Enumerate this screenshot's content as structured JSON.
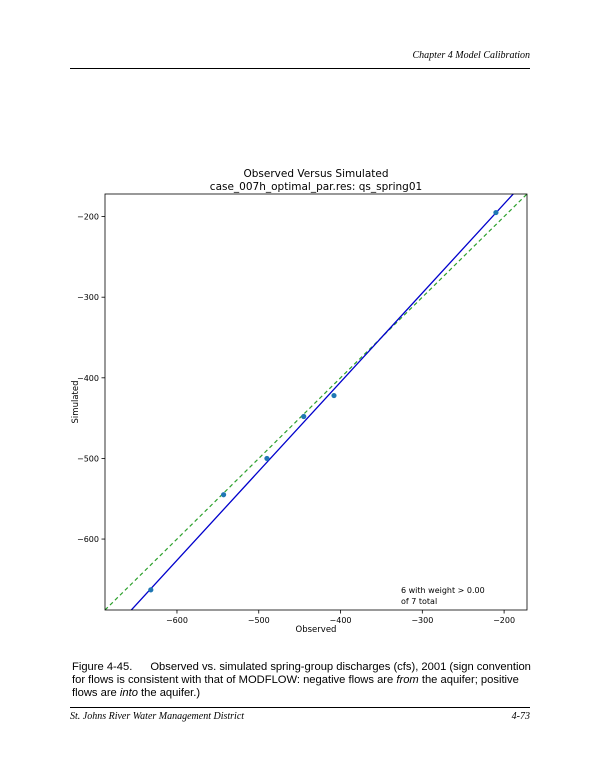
{
  "header": {
    "chapter": "Chapter 4 Model Calibration"
  },
  "chart_data": {
    "type": "scatter",
    "title": "Observed Versus Simulated",
    "subtitle": "case_007h_optimal_par.res: qs_spring01",
    "xlabel": "Observed",
    "ylabel": "Simulated",
    "xlim": [
      -688,
      -172
    ],
    "ylim": [
      -688,
      -172
    ],
    "x_ticks": [
      -600,
      -500,
      -400,
      -300,
      -200
    ],
    "y_ticks": [
      -200,
      -300,
      -400,
      -500,
      -600
    ],
    "points": [
      {
        "x": -632,
        "y": -663
      },
      {
        "x": -543,
        "y": -545
      },
      {
        "x": -490,
        "y": -500
      },
      {
        "x": -445,
        "y": -448
      },
      {
        "x": -408,
        "y": -422
      },
      {
        "x": -210,
        "y": -195
      }
    ],
    "fit_line": {
      "slope": 1.105,
      "intercept": 36.7,
      "color": "#0000cc"
    },
    "one_to_one_line": {
      "color": "#2ca02c",
      "style": "dashed"
    },
    "point_color": "#1f77b4",
    "annotation": [
      "6 with weight > 0.00",
      "of 7 total"
    ]
  },
  "caption": {
    "label": "Figure 4-45.",
    "text": "Observed vs. simulated spring-group discharges (cfs), 2001 (sign convention for flows is consistent with that of MODFLOW: negative flows are from the aquifer; positive flows are into the aquifer.)"
  },
  "footer": {
    "left": "St. Johns River Water Management District",
    "right": "4-73"
  }
}
